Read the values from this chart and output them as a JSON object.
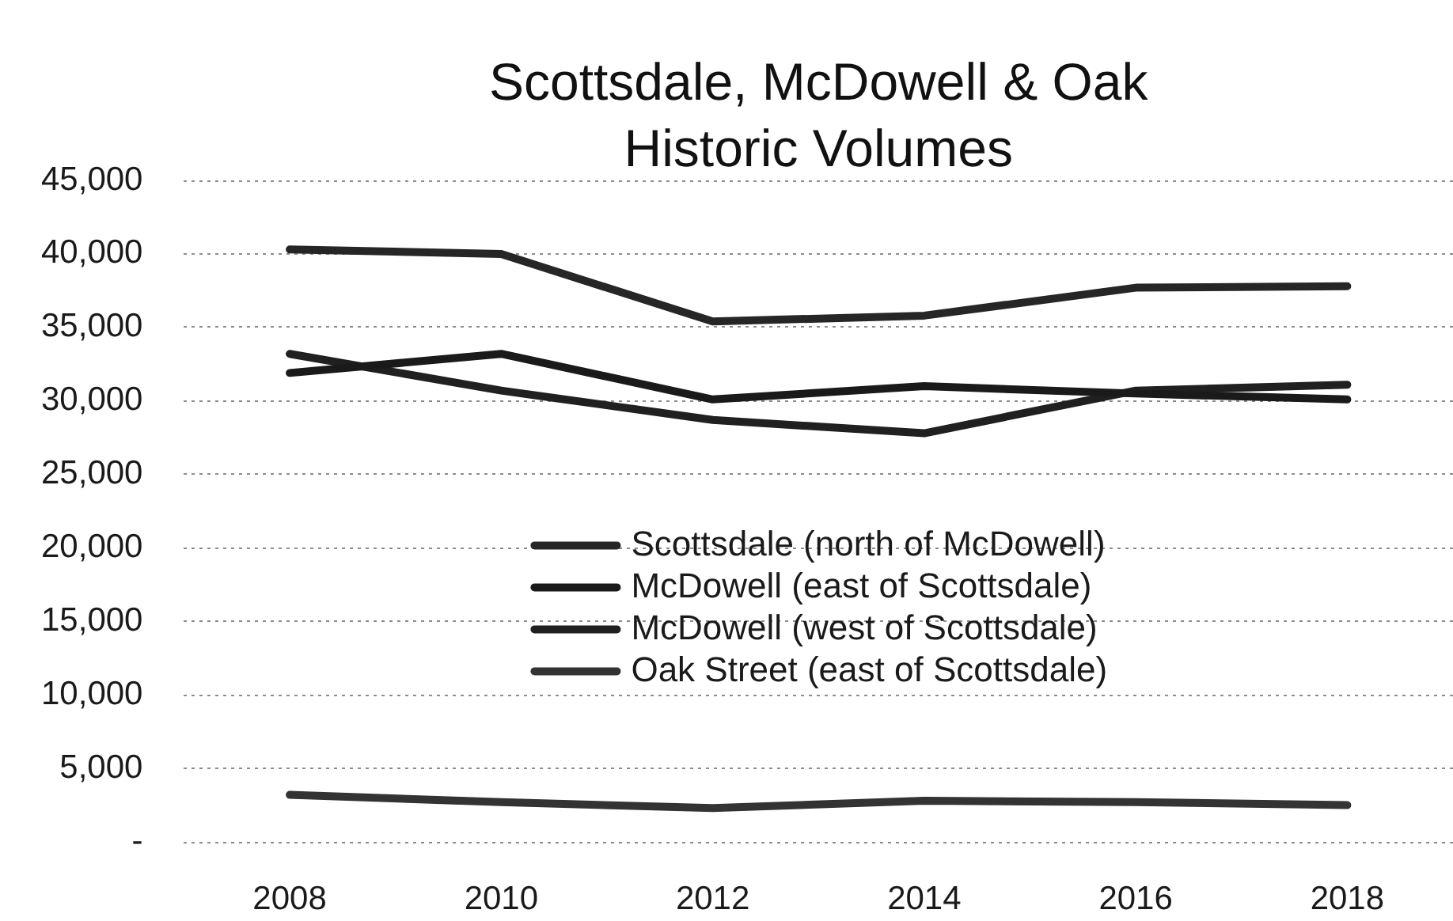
{
  "chart_data": {
    "type": "line",
    "title": "Scottsdale, McDowell & Oak Historic Volumes",
    "categories": [
      "2008",
      "2010",
      "2012",
      "2014",
      "2016",
      "2018"
    ],
    "series": [
      {
        "name": "Scottsdale (north of McDowell)",
        "color": "#262626",
        "values": [
          40300,
          40000,
          35400,
          35800,
          37700,
          37800
        ]
      },
      {
        "name": "McDowell (east of Scottsdale)",
        "color": "#1a1a1a",
        "values": [
          31900,
          33200,
          30100,
          31000,
          30500,
          30100
        ]
      },
      {
        "name": "McDowell (west of Scottsdale)",
        "color": "#202020",
        "values": [
          33200,
          30700,
          28700,
          27800,
          30700,
          31100
        ]
      },
      {
        "name": "Oak Street (east of Scottsdale)",
        "color": "#333333",
        "values": [
          3200,
          2700,
          2300,
          2800,
          2700,
          2500
        ]
      }
    ],
    "ylim": [
      0,
      45000
    ],
    "yticks": [
      {
        "value": 0,
        "label": "-"
      },
      {
        "value": 5000,
        "label": "5,000"
      },
      {
        "value": 10000,
        "label": "10,000"
      },
      {
        "value": 15000,
        "label": "15,000"
      },
      {
        "value": 20000,
        "label": "20,000"
      },
      {
        "value": 25000,
        "label": "25,000"
      },
      {
        "value": 30000,
        "label": "30,000"
      },
      {
        "value": 35000,
        "label": "35,000"
      },
      {
        "value": 40000,
        "label": "40,000"
      },
      {
        "value": 45000,
        "label": "45,000"
      }
    ],
    "grid": "y",
    "legend": "center",
    "marker": "none",
    "line_style": "solid"
  }
}
